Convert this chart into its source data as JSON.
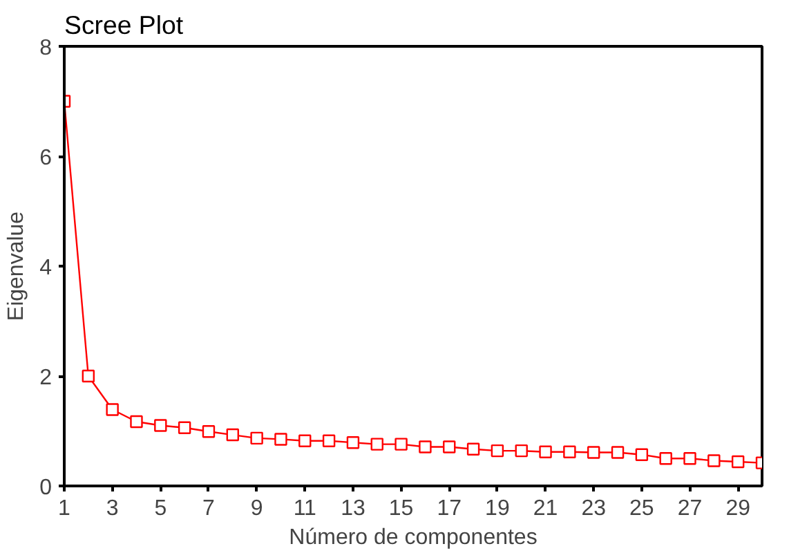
{
  "chart_data": {
    "type": "line",
    "title": "Scree Plot",
    "xlabel": "Número de componentes",
    "ylabel": "Eigenvalue",
    "x": [
      1,
      2,
      3,
      4,
      5,
      6,
      7,
      8,
      9,
      10,
      11,
      12,
      13,
      14,
      15,
      16,
      17,
      18,
      19,
      20,
      21,
      22,
      23,
      24,
      25,
      26,
      27,
      28,
      29,
      30
    ],
    "series": [
      {
        "color": "#ff0000",
        "values": [
          7.0,
          2.0,
          1.39,
          1.17,
          1.1,
          1.06,
          0.99,
          0.93,
          0.87,
          0.85,
          0.82,
          0.82,
          0.79,
          0.76,
          0.76,
          0.71,
          0.71,
          0.67,
          0.64,
          0.64,
          0.62,
          0.62,
          0.61,
          0.61,
          0.57,
          0.5,
          0.5,
          0.46,
          0.44,
          0.42
        ]
      }
    ],
    "xlim": [
      1,
      30
    ],
    "xticks": [
      1,
      3,
      5,
      7,
      9,
      11,
      13,
      15,
      17,
      19,
      21,
      23,
      25,
      27,
      29
    ],
    "ylim": [
      0,
      8
    ],
    "yticks": [
      0,
      2,
      4,
      6,
      8
    ],
    "marker": "square",
    "line_style": "solid",
    "grid": false
  }
}
